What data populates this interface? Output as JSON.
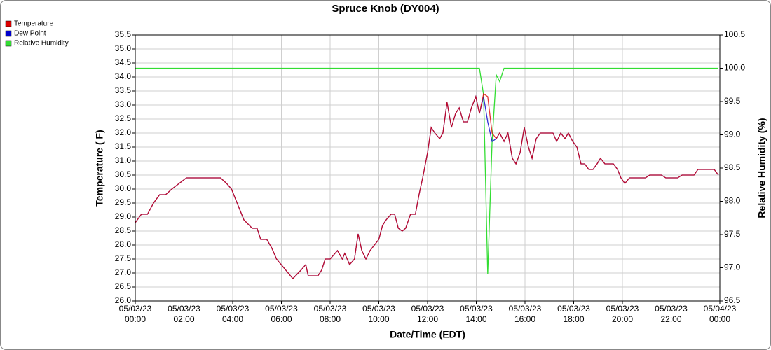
{
  "chart_data": {
    "type": "line",
    "title": "Spruce Knob (DY004)",
    "x_label": "Date/Time (EDT)",
    "y_label": "Temperature ( F)",
    "y2_label": "Relative Humidity (%)",
    "legend": "top-left",
    "grid": true,
    "xlim": [
      0,
      24
    ],
    "xticks": [
      {
        "value": 0,
        "label": [
          "05/03/23",
          "00:00"
        ]
      },
      {
        "value": 2,
        "label": [
          "05/03/23",
          "02:00"
        ]
      },
      {
        "value": 4,
        "label": [
          "05/03/23",
          "04:00"
        ]
      },
      {
        "value": 6,
        "label": [
          "05/03/23",
          "06:00"
        ]
      },
      {
        "value": 8,
        "label": [
          "05/03/23",
          "08:00"
        ]
      },
      {
        "value": 10,
        "label": [
          "05/03/23",
          "10:00"
        ]
      },
      {
        "value": 12,
        "label": [
          "05/03/23",
          "12:00"
        ]
      },
      {
        "value": 14,
        "label": [
          "05/03/23",
          "14:00"
        ]
      },
      {
        "value": 16,
        "label": [
          "05/03/23",
          "16:00"
        ]
      },
      {
        "value": 18,
        "label": [
          "05/03/23",
          "18:00"
        ]
      },
      {
        "value": 20,
        "label": [
          "05/03/23",
          "20:00"
        ]
      },
      {
        "value": 22,
        "label": [
          "05/03/23",
          "22:00"
        ]
      },
      {
        "value": 24,
        "label": [
          "05/04/23",
          "00:00"
        ]
      }
    ],
    "ylim": [
      26,
      35.5
    ],
    "yticks": [
      {
        "value": 26,
        "label": "26.0"
      },
      26.5,
      {
        "value": 27,
        "label": "27.0"
      },
      27.5,
      {
        "value": 28,
        "label": "28.0"
      },
      28.5,
      {
        "value": 29,
        "label": "29.0"
      },
      29.5,
      {
        "value": 30,
        "label": "30.0"
      },
      30.5,
      {
        "value": 31,
        "label": "31.0"
      },
      31.5,
      {
        "value": 32,
        "label": "32.0"
      },
      32.5,
      {
        "value": 33,
        "label": "33.0"
      },
      33.5,
      {
        "value": 34,
        "label": "34.0"
      },
      34.5,
      {
        "value": 35,
        "label": "35.0"
      },
      35.5
    ],
    "y2lim": [
      96.5,
      100.5
    ],
    "y2ticks": [
      96.5,
      {
        "value": 97,
        "label": "97.0"
      },
      97.5,
      {
        "value": 98,
        "label": "98.0"
      },
      98.5,
      {
        "value": 99,
        "label": "99.0"
      },
      99.5,
      {
        "value": 100,
        "label": "100.0"
      },
      100.5
    ],
    "x": [
      0,
      0.25,
      0.5,
      0.75,
      1.0,
      1.25,
      1.5,
      1.8,
      2.1,
      3.5,
      3.75,
      3.95,
      4.46,
      4.8,
      5.0,
      5.15,
      5.4,
      5.6,
      5.8,
      6.47,
      6.8,
      7.0,
      7.1,
      7.5,
      7.65,
      7.8,
      8.0,
      8.3,
      8.5,
      8.6,
      8.8,
      9.0,
      9.15,
      9.3,
      9.47,
      9.64,
      10.0,
      10.15,
      10.3,
      10.5,
      10.65,
      10.8,
      10.96,
      11.1,
      11.3,
      11.5,
      11.65,
      11.8,
      12.0,
      12.15,
      12.3,
      12.5,
      12.63,
      12.8,
      12.98,
      13.15,
      13.3,
      13.47,
      13.64,
      13.8,
      13.98,
      14.13,
      14.3,
      14.47,
      14.65,
      14.82,
      14.96,
      15.14,
      15.3,
      15.48,
      15.63,
      15.8,
      15.97,
      16.14,
      16.29,
      16.46,
      16.63,
      17.15,
      17.3,
      17.47,
      17.64,
      17.78,
      17.96,
      18.13,
      18.3,
      18.45,
      18.62,
      18.79,
      18.96,
      19.1,
      19.28,
      19.63,
      19.8,
      19.94,
      20.1,
      20.29,
      20.95,
      21.12,
      21.6,
      21.78,
      22.27,
      22.45,
      22.94,
      23.1,
      23.77,
      23.94
    ],
    "series": [
      {
        "name": "Relative Humidity",
        "color": "#33dd33",
        "axis": "y2",
        "values": [
          100,
          100,
          100,
          100,
          100,
          100,
          100,
          100,
          100,
          100,
          100,
          100,
          100,
          100,
          100,
          100,
          100,
          100,
          100,
          100,
          100,
          100,
          100,
          100,
          100,
          100,
          100,
          100,
          100,
          100,
          100,
          100,
          100,
          100,
          100,
          100,
          100,
          100,
          100,
          100,
          100,
          100,
          100,
          100,
          100,
          100,
          100,
          100,
          100,
          100,
          100,
          100,
          100,
          100,
          100,
          100,
          100,
          100,
          100,
          100,
          100,
          100,
          99.6,
          96.9,
          98.9,
          99.9,
          99.8,
          100,
          100,
          100,
          100,
          100,
          100,
          100,
          100,
          100,
          100,
          100,
          100,
          100,
          100,
          100,
          100,
          100,
          100,
          100,
          100,
          100,
          100,
          100,
          100,
          100,
          100,
          100,
          100,
          100,
          100,
          100,
          100,
          100,
          100,
          100,
          100,
          100,
          100,
          100
        ]
      },
      {
        "name": "Dew Point",
        "color": "#0000cc",
        "values": [
          28.8,
          29.1,
          29.1,
          29.5,
          29.8,
          29.8,
          30.0,
          30.2,
          30.4,
          30.4,
          30.2,
          30.0,
          28.9,
          28.6,
          28.6,
          28.2,
          28.2,
          27.9,
          27.5,
          26.8,
          27.1,
          27.3,
          26.9,
          26.9,
          27.1,
          27.5,
          27.5,
          27.8,
          27.5,
          27.7,
          27.3,
          27.5,
          28.4,
          27.8,
          27.5,
          27.8,
          28.2,
          28.7,
          28.9,
          29.1,
          29.1,
          28.6,
          28.5,
          28.6,
          29.1,
          29.1,
          29.8,
          30.4,
          31.3,
          32.2,
          32.0,
          31.8,
          32.0,
          33.1,
          32.2,
          32.7,
          32.9,
          32.4,
          32.4,
          32.9,
          33.3,
          32.7,
          33.3,
          32.4,
          31.7,
          31.8,
          32.0,
          31.7,
          32.0,
          31.1,
          30.9,
          31.3,
          32.2,
          31.5,
          31.1,
          31.8,
          32.0,
          32.0,
          31.7,
          32.0,
          31.8,
          32.0,
          31.7,
          31.5,
          30.9,
          30.9,
          30.7,
          30.7,
          30.9,
          31.1,
          30.9,
          30.9,
          30.7,
          30.4,
          30.2,
          30.4,
          30.4,
          30.5,
          30.5,
          30.4,
          30.4,
          30.5,
          30.5,
          30.7,
          30.7,
          30.5
        ]
      },
      {
        "name": "Temperature",
        "color": "#dd0000",
        "values": [
          28.8,
          29.1,
          29.1,
          29.5,
          29.8,
          29.8,
          30.0,
          30.2,
          30.4,
          30.4,
          30.2,
          30.0,
          28.9,
          28.6,
          28.6,
          28.2,
          28.2,
          27.9,
          27.5,
          26.8,
          27.1,
          27.3,
          26.9,
          26.9,
          27.1,
          27.5,
          27.5,
          27.8,
          27.5,
          27.7,
          27.3,
          27.5,
          28.4,
          27.8,
          27.5,
          27.8,
          28.2,
          28.7,
          28.9,
          29.1,
          29.1,
          28.6,
          28.5,
          28.6,
          29.1,
          29.1,
          29.8,
          30.4,
          31.3,
          32.2,
          32.0,
          31.8,
          32.0,
          33.1,
          32.2,
          32.7,
          32.9,
          32.4,
          32.4,
          32.9,
          33.3,
          32.7,
          33.4,
          33.3,
          32.0,
          31.8,
          32.0,
          31.7,
          32.0,
          31.1,
          30.9,
          31.3,
          32.2,
          31.5,
          31.1,
          31.8,
          32.0,
          32.0,
          31.7,
          32.0,
          31.8,
          32.0,
          31.7,
          31.5,
          30.9,
          30.9,
          30.7,
          30.7,
          30.9,
          31.1,
          30.9,
          30.9,
          30.7,
          30.4,
          30.2,
          30.4,
          30.4,
          30.5,
          30.5,
          30.4,
          30.4,
          30.5,
          30.5,
          30.7,
          30.7,
          30.5
        ]
      }
    ],
    "legend_order": [
      2,
      1,
      0
    ]
  }
}
